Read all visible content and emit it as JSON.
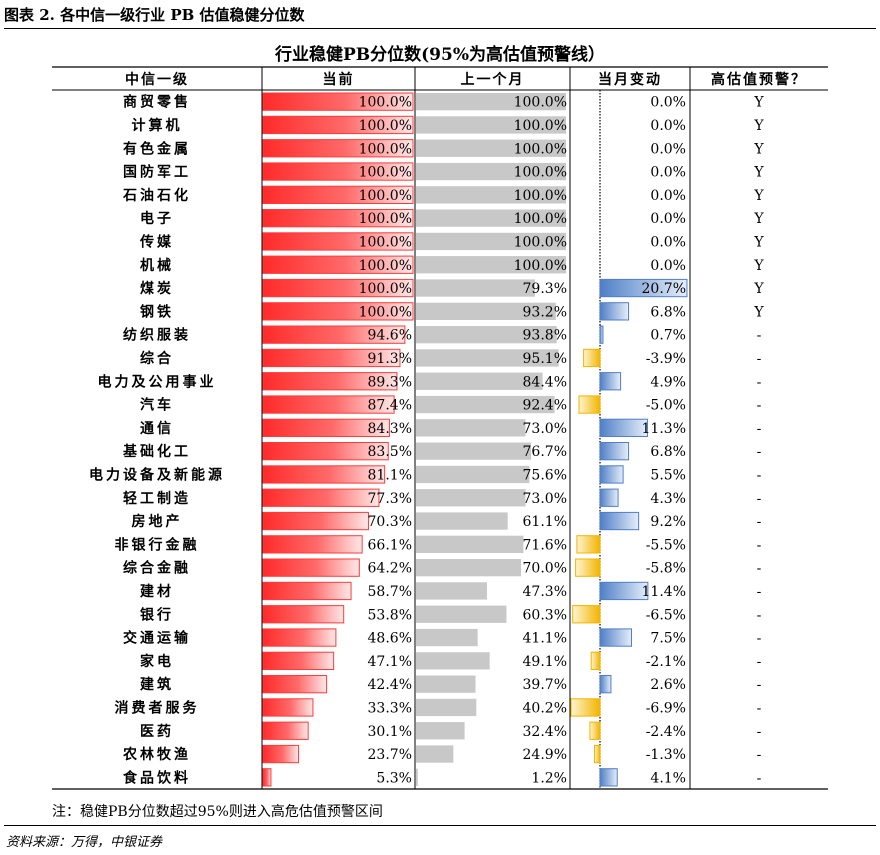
{
  "caption": "图表 2. 各中信一级行业 PB 估值稳健分位数",
  "note": "注：稳健PB分位数超过95%则进入高危估值预警区间",
  "source": "资料来源：万得，中银证券",
  "colors": {
    "current_bar": "#ff3b3b",
    "previous_bar": "#c8c8c8",
    "change_positive": "#4f7fc6",
    "change_negative": "#f2b400",
    "grid": "#000000"
  },
  "chart_data": {
    "type": "table",
    "title": "行业稳健PB分位数(95%为高估值预警线）",
    "columns": [
      "中信一级",
      "当前",
      "上一个月",
      "当月变动",
      "高估值预警？"
    ],
    "rows": [
      {
        "industry": "商贸零售",
        "current": "100.0%",
        "previous": "100.0%",
        "change": "0.0%",
        "alert": "Y"
      },
      {
        "industry": "计算机",
        "current": "100.0%",
        "previous": "100.0%",
        "change": "0.0%",
        "alert": "Y"
      },
      {
        "industry": "有色金属",
        "current": "100.0%",
        "previous": "100.0%",
        "change": "0.0%",
        "alert": "Y"
      },
      {
        "industry": "国防军工",
        "current": "100.0%",
        "previous": "100.0%",
        "change": "0.0%",
        "alert": "Y"
      },
      {
        "industry": "石油石化",
        "current": "100.0%",
        "previous": "100.0%",
        "change": "0.0%",
        "alert": "Y"
      },
      {
        "industry": "电子",
        "current": "100.0%",
        "previous": "100.0%",
        "change": "0.0%",
        "alert": "Y"
      },
      {
        "industry": "传媒",
        "current": "100.0%",
        "previous": "100.0%",
        "change": "0.0%",
        "alert": "Y"
      },
      {
        "industry": "机械",
        "current": "100.0%",
        "previous": "100.0%",
        "change": "0.0%",
        "alert": "Y"
      },
      {
        "industry": "煤炭",
        "current": "100.0%",
        "previous": "79.3%",
        "change": "20.7%",
        "alert": "Y"
      },
      {
        "industry": "钢铁",
        "current": "100.0%",
        "previous": "93.2%",
        "change": "6.8%",
        "alert": "Y"
      },
      {
        "industry": "纺织服装",
        "current": "94.6%",
        "previous": "93.8%",
        "change": "0.7%",
        "alert": "-"
      },
      {
        "industry": "综合",
        "current": "91.3%",
        "previous": "95.1%",
        "change": "-3.9%",
        "alert": "-"
      },
      {
        "industry": "电力及公用事业",
        "current": "89.3%",
        "previous": "84.4%",
        "change": "4.9%",
        "alert": "-"
      },
      {
        "industry": "汽车",
        "current": "87.4%",
        "previous": "92.4%",
        "change": "-5.0%",
        "alert": "-"
      },
      {
        "industry": "通信",
        "current": "84.3%",
        "previous": "73.0%",
        "change": "11.3%",
        "alert": "-"
      },
      {
        "industry": "基础化工",
        "current": "83.5%",
        "previous": "76.7%",
        "change": "6.8%",
        "alert": "-"
      },
      {
        "industry": "电力设备及新能源",
        "current": "81.1%",
        "previous": "75.6%",
        "change": "5.5%",
        "alert": "-"
      },
      {
        "industry": "轻工制造",
        "current": "77.3%",
        "previous": "73.0%",
        "change": "4.3%",
        "alert": "-"
      },
      {
        "industry": "房地产",
        "current": "70.3%",
        "previous": "61.1%",
        "change": "9.2%",
        "alert": "-"
      },
      {
        "industry": "非银行金融",
        "current": "66.1%",
        "previous": "71.6%",
        "change": "-5.5%",
        "alert": "-"
      },
      {
        "industry": "综合金融",
        "current": "64.2%",
        "previous": "70.0%",
        "change": "-5.8%",
        "alert": "-"
      },
      {
        "industry": "建材",
        "current": "58.7%",
        "previous": "47.3%",
        "change": "11.4%",
        "alert": "-"
      },
      {
        "industry": "银行",
        "current": "53.8%",
        "previous": "60.3%",
        "change": "-6.5%",
        "alert": "-"
      },
      {
        "industry": "交通运输",
        "current": "48.6%",
        "previous": "41.1%",
        "change": "7.5%",
        "alert": "-"
      },
      {
        "industry": "家电",
        "current": "47.1%",
        "previous": "49.1%",
        "change": "-2.1%",
        "alert": "-"
      },
      {
        "industry": "建筑",
        "current": "42.4%",
        "previous": "39.7%",
        "change": "2.6%",
        "alert": "-"
      },
      {
        "industry": "消费者服务",
        "current": "33.3%",
        "previous": "40.2%",
        "change": "-6.9%",
        "alert": "-"
      },
      {
        "industry": "医药",
        "current": "30.1%",
        "previous": "32.4%",
        "change": "-2.4%",
        "alert": "-"
      },
      {
        "industry": "农林牧渔",
        "current": "23.7%",
        "previous": "24.9%",
        "change": "-1.3%",
        "alert": "-"
      },
      {
        "industry": "食品饮料",
        "current": "5.3%",
        "previous": "1.2%",
        "change": "4.1%",
        "alert": "-"
      }
    ]
  }
}
